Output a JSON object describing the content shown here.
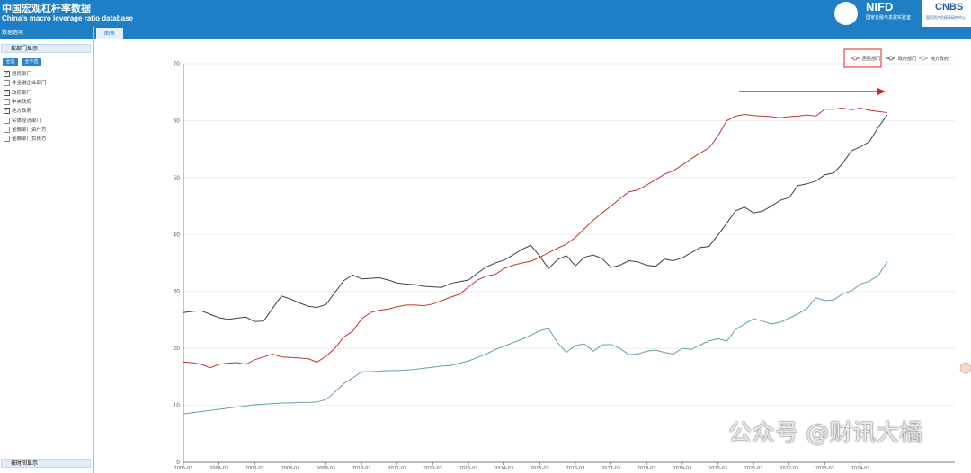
{
  "header": {
    "title": "中国宏观杠杆率数据",
    "subtitle": "China's macro leverage ratio database",
    "logos": [
      "NIFD",
      "国家金融与发展实验室",
      "CNBS",
      "国家资产负债表研究中心"
    ]
  },
  "sidebar": {
    "title": "数据选项",
    "section": "按部门显示",
    "buttons": [
      "全选",
      "全不选"
    ],
    "options": [
      {
        "label": "居民部门",
        "checked": true
      },
      {
        "label": "非金融企业部门",
        "checked": false
      },
      {
        "label": "政府部门",
        "checked": true
      },
      {
        "label": "中央政府",
        "checked": false
      },
      {
        "label": "地方政府",
        "checked": true
      },
      {
        "label": "实体经济部门",
        "checked": false
      },
      {
        "label": "金融部门资产方",
        "checked": false
      },
      {
        "label": "金融部门负债方",
        "checked": false
      }
    ],
    "footer": "按时间显示"
  },
  "tab": "图表",
  "watermark": "公众号 @财讯大橘",
  "chart_data": {
    "type": "line",
    "categories": [
      "2005-03",
      null,
      null,
      null,
      "2006-03",
      null,
      null,
      null,
      "2007-03",
      null,
      null,
      null,
      "2008-03",
      null,
      null,
      null,
      "2009-03",
      null,
      null,
      null,
      "2010-03",
      null,
      null,
      null,
      "2011-03",
      null,
      null,
      null,
      "2012-03",
      null,
      null,
      null,
      "2013-03",
      null,
      null,
      null,
      "2014-03",
      null,
      null,
      null,
      "2015-03",
      null,
      null,
      null,
      "2016-03",
      null,
      null,
      null,
      "2017-03",
      null,
      null,
      null,
      "2018-03",
      null,
      null,
      null,
      "2019-03",
      null,
      null,
      null,
      "2020-03",
      null,
      null,
      null,
      "2021-03",
      null,
      null,
      null,
      "2022-03",
      null,
      null,
      null,
      "2023-03",
      null,
      null,
      null,
      "2024-03",
      null,
      null,
      null
    ],
    "ylim": [
      0,
      70
    ],
    "yticks": [
      0,
      10,
      20,
      30,
      40,
      50,
      60,
      70
    ],
    "grid": true,
    "legend": "top-right",
    "series": [
      {
        "name": "居民部门",
        "color": "#c23531",
        "values": [
          17.6,
          17.5,
          17.2,
          16.6,
          17.2,
          17.4,
          17.5,
          17.2,
          18.0,
          18.5,
          19.0,
          18.5,
          18.4,
          18.3,
          18.2,
          17.6,
          18.6,
          20.0,
          22.0,
          23.0,
          25.2,
          26.3,
          26.7,
          26.9,
          27.3,
          27.6,
          27.6,
          27.5,
          27.8,
          28.4,
          29.0,
          29.5,
          30.8,
          32.0,
          32.7,
          33.0,
          34.0,
          34.6,
          35.0,
          35.3,
          36.0,
          36.8,
          37.6,
          38.3,
          39.5,
          41.0,
          42.5,
          43.8,
          45.0,
          46.3,
          47.5,
          47.8,
          48.7,
          49.6,
          50.6,
          51.2,
          52.2,
          53.3,
          54.3,
          55.2,
          57.3,
          60.0,
          60.8,
          61.1,
          60.9,
          60.8,
          60.7,
          60.5,
          60.7,
          60.8,
          61.0,
          60.8,
          62.0,
          62.0,
          62.2,
          61.9,
          62.2,
          61.8,
          61.6,
          61.4
        ]
      },
      {
        "name": "政府部门",
        "color": "#2f4554",
        "values": [
          26.3,
          26.5,
          26.6,
          26.0,
          25.4,
          25.1,
          25.3,
          25.5,
          24.7,
          24.8,
          27.0,
          29.2,
          28.7,
          28.0,
          27.4,
          27.2,
          27.7,
          29.8,
          31.9,
          32.9,
          32.2,
          32.3,
          32.4,
          32.0,
          31.5,
          31.3,
          31.2,
          30.9,
          30.8,
          30.7,
          31.4,
          31.7,
          32.0,
          33.2,
          34.3,
          35.0,
          35.5,
          36.4,
          37.4,
          38.1,
          36.2,
          34.0,
          35.6,
          36.3,
          34.5,
          36.0,
          36.4,
          35.8,
          34.2,
          34.6,
          35.4,
          35.2,
          34.6,
          34.4,
          35.7,
          35.4,
          35.9,
          36.8,
          37.7,
          37.9,
          39.9,
          42.0,
          44.2,
          44.8,
          43.8,
          44.1,
          45.0,
          46.0,
          46.5,
          48.6,
          48.9,
          49.4,
          50.5,
          50.8,
          52.5,
          54.7,
          55.4,
          56.3,
          58.8,
          61.0
        ]
      },
      {
        "name": "地方政府",
        "color": "#61a0a8",
        "values": [
          8.5,
          8.7,
          8.9,
          9.1,
          9.3,
          9.5,
          9.7,
          9.9,
          10.1,
          10.2,
          10.3,
          10.4,
          10.4,
          10.5,
          10.5,
          10.6,
          11.0,
          12.3,
          13.8,
          14.8,
          15.9,
          15.9,
          16.0,
          16.1,
          16.1,
          16.2,
          16.3,
          16.5,
          16.7,
          16.9,
          17.0,
          17.4,
          17.8,
          18.4,
          19.0,
          19.8,
          20.4,
          21.0,
          21.6,
          22.3,
          23.1,
          23.5,
          21.0,
          19.3,
          20.5,
          20.8,
          19.5,
          20.6,
          20.7,
          20.0,
          18.9,
          19.0,
          19.5,
          19.7,
          19.3,
          19.0,
          20.0,
          19.8,
          20.6,
          21.3,
          21.7,
          21.3,
          23.3,
          24.3,
          25.2,
          24.8,
          24.3,
          24.6,
          25.3,
          26.1,
          27.0,
          28.9,
          28.4,
          28.5,
          29.6,
          30.1,
          31.3,
          31.8,
          32.8,
          35.2
        ]
      }
    ]
  }
}
